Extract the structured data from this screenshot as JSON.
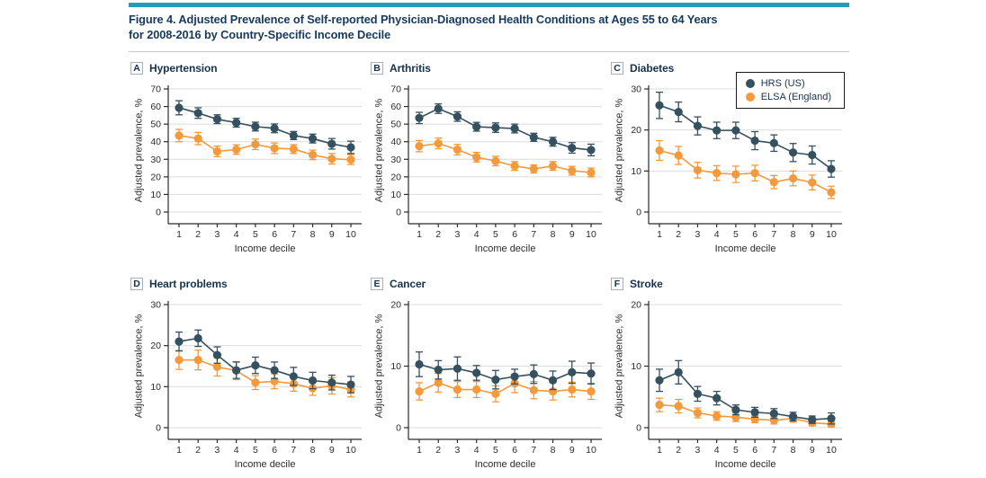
{
  "figure": {
    "title_line1": "Figure 4. Adjusted Prevalence of Self-reported Physician-Diagnosed Health Conditions at Ages 55 to 64 Years",
    "title_line2": "for 2008-2016 by Country-Specific Income Decile"
  },
  "colors": {
    "accent_bar": "#1f9dbd",
    "title_text": "#16395c",
    "panel_text": "#16324c",
    "hrs": "#35505e",
    "elsa": "#f5993d",
    "grid": "#dcdcdc",
    "axis": "#2b2b2b"
  },
  "legend": {
    "position": "panel-C-top-right",
    "entries": [
      {
        "label": "HRS (US)",
        "color_key": "hrs"
      },
      {
        "label": "ELSA (England)",
        "color_key": "elsa"
      }
    ]
  },
  "chart_data": [
    {
      "type": "line",
      "panel": "A",
      "title": "Hypertension",
      "x": [
        1,
        2,
        3,
        4,
        5,
        6,
        7,
        8,
        9,
        10
      ],
      "xlabel": "Income decile",
      "ylabel": "Adjusted prevalence, %",
      "ylim": [
        0,
        70
      ],
      "yticks": [
        0,
        10,
        20,
        30,
        40,
        50,
        60,
        70
      ],
      "grid": true,
      "series": [
        {
          "name": "HRS (US)",
          "color_key": "hrs",
          "values": [
            59.3,
            56.3,
            52.8,
            50.8,
            48.6,
            47.6,
            43.5,
            41.8,
            38.8,
            36.8
          ],
          "error": [
            4.0,
            3.0,
            2.5,
            2.5,
            2.5,
            2.5,
            2.3,
            2.5,
            3.0,
            3.5
          ]
        },
        {
          "name": "ELSA (England)",
          "color_key": "elsa",
          "values": [
            43.5,
            41.8,
            34.5,
            35.5,
            38.5,
            36.3,
            35.8,
            32.5,
            30.3,
            29.8
          ],
          "error": [
            3.5,
            3.5,
            3.0,
            2.7,
            3.0,
            3.0,
            2.5,
            2.7,
            3.0,
            2.8
          ]
        }
      ]
    },
    {
      "type": "line",
      "panel": "B",
      "title": "Arthritis",
      "x": [
        1,
        2,
        3,
        4,
        5,
        6,
        7,
        8,
        9,
        10
      ],
      "xlabel": "Income decile",
      "ylabel": "Adjusted prevalence, %",
      "ylim": [
        0,
        70
      ],
      "yticks": [
        0,
        10,
        20,
        30,
        40,
        50,
        60,
        70
      ],
      "grid": true,
      "series": [
        {
          "name": "HRS (US)",
          "color_key": "hrs",
          "values": [
            53.5,
            58.8,
            54.3,
            48.5,
            48.0,
            47.5,
            42.5,
            40.0,
            36.5,
            35.3
          ],
          "error": [
            3.2,
            2.7,
            2.7,
            2.5,
            2.7,
            2.5,
            2.3,
            2.5,
            3.0,
            3.3
          ]
        },
        {
          "name": "ELSA (England)",
          "color_key": "elsa",
          "values": [
            37.5,
            39.0,
            35.5,
            31.2,
            29.0,
            26.2,
            24.5,
            26.2,
            23.5,
            22.5
          ],
          "error": [
            3.2,
            3.0,
            3.0,
            2.7,
            2.7,
            2.5,
            2.3,
            2.5,
            2.5,
            2.5
          ]
        }
      ]
    },
    {
      "type": "line",
      "panel": "C",
      "title": "Diabetes",
      "x": [
        1,
        2,
        3,
        4,
        5,
        6,
        7,
        8,
        9,
        10
      ],
      "xlabel": "Income decile",
      "ylabel": "Adjusted prevalence, %",
      "ylim": [
        0,
        30
      ],
      "yticks": [
        0,
        10,
        20,
        30
      ],
      "grid": true,
      "has_legend": true,
      "series": [
        {
          "name": "HRS (US)",
          "color_key": "hrs",
          "values": [
            26.0,
            24.4,
            21.0,
            19.9,
            19.9,
            17.4,
            16.8,
            14.5,
            13.9,
            10.5
          ],
          "error": [
            3.2,
            2.4,
            2.2,
            2.0,
            2.0,
            2.2,
            2.0,
            2.2,
            2.2,
            2.0
          ]
        },
        {
          "name": "ELSA (England)",
          "color_key": "elsa",
          "values": [
            15.0,
            13.8,
            10.2,
            9.5,
            9.2,
            9.5,
            7.3,
            8.2,
            7.2,
            4.8
          ],
          "error": [
            2.4,
            2.2,
            1.9,
            1.8,
            2.0,
            1.9,
            1.6,
            1.8,
            1.8,
            1.5
          ]
        }
      ]
    },
    {
      "type": "line",
      "panel": "D",
      "title": "Heart problems",
      "x": [
        1,
        2,
        3,
        4,
        5,
        6,
        7,
        8,
        9,
        10
      ],
      "xlabel": "Income decile",
      "ylabel": "Adjusted prevalence, %",
      "ylim": [
        0,
        30
      ],
      "yticks": [
        0,
        10,
        20,
        30
      ],
      "grid": true,
      "series": [
        {
          "name": "HRS (US)",
          "color_key": "hrs",
          "values": [
            21.0,
            21.8,
            17.7,
            14.0,
            15.2,
            14.0,
            12.5,
            11.5,
            11.0,
            10.5
          ],
          "error": [
            2.3,
            2.0,
            2.0,
            2.0,
            2.0,
            2.0,
            2.2,
            2.0,
            1.8,
            2.0
          ]
        },
        {
          "name": "ELSA (England)",
          "color_key": "elsa",
          "values": [
            16.5,
            16.5,
            14.8,
            13.9,
            11.0,
            11.3,
            10.7,
            9.6,
            10.2,
            9.3
          ],
          "error": [
            2.3,
            2.4,
            2.2,
            2.2,
            1.7,
            1.8,
            1.8,
            1.7,
            2.0,
            1.8
          ]
        }
      ]
    },
    {
      "type": "line",
      "panel": "E",
      "title": "Cancer",
      "x": [
        1,
        2,
        3,
        4,
        5,
        6,
        7,
        8,
        9,
        10
      ],
      "xlabel": "Income decile",
      "ylabel": "Adjusted prevalence, %",
      "ylim": [
        0,
        20
      ],
      "yticks": [
        0,
        10,
        20
      ],
      "grid": true,
      "series": [
        {
          "name": "HRS (US)",
          "color_key": "hrs",
          "values": [
            10.3,
            9.4,
            9.6,
            8.9,
            7.8,
            8.3,
            8.7,
            7.7,
            9.0,
            8.8
          ],
          "error": [
            2.0,
            1.5,
            1.9,
            1.2,
            1.5,
            1.2,
            1.5,
            1.5,
            1.8,
            1.7
          ]
        },
        {
          "name": "ELSA (England)",
          "color_key": "elsa",
          "values": [
            5.9,
            7.3,
            6.2,
            6.2,
            5.5,
            7.2,
            6.1,
            5.9,
            6.2,
            5.9
          ],
          "error": [
            1.4,
            1.5,
            1.3,
            1.3,
            1.3,
            1.5,
            1.4,
            1.4,
            1.2,
            1.3
          ]
        }
      ]
    },
    {
      "type": "line",
      "panel": "F",
      "title": "Stroke",
      "x": [
        1,
        2,
        3,
        4,
        5,
        6,
        7,
        8,
        9,
        10
      ],
      "xlabel": "Income decile",
      "ylabel": "Adjusted prevalence, %",
      "ylim": [
        0,
        20
      ],
      "yticks": [
        0,
        10,
        20
      ],
      "grid": true,
      "series": [
        {
          "name": "HRS (US)",
          "color_key": "hrs",
          "values": [
            7.7,
            9.0,
            5.5,
            4.8,
            2.9,
            2.5,
            2.3,
            1.8,
            1.3,
            1.5
          ],
          "error": [
            1.8,
            1.9,
            1.2,
            1.1,
            0.8,
            0.8,
            0.8,
            0.7,
            0.6,
            0.9
          ]
        },
        {
          "name": "ELSA (England)",
          "color_key": "elsa",
          "values": [
            3.7,
            3.5,
            2.4,
            1.9,
            1.7,
            1.4,
            1.2,
            1.5,
            0.8,
            0.6
          ],
          "error": [
            1.1,
            1.1,
            0.8,
            0.7,
            0.7,
            0.6,
            0.6,
            0.6,
            0.5,
            0.5
          ]
        }
      ]
    }
  ]
}
